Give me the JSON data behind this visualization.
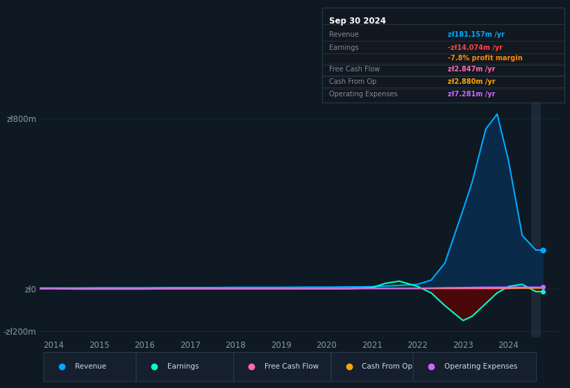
{
  "bg_color": "#0f1923",
  "plot_bg_color": "#0f1923",
  "grid_color": "#1e2d3d",
  "title_box": {
    "date": "Sep 30 2024",
    "rows": [
      {
        "label": "Revenue",
        "value": "zł181.157m /yr",
        "val_color": "#00aaff",
        "label_color": "#888899"
      },
      {
        "label": "Earnings",
        "value": "-zł14.074m /yr",
        "val_color": "#ff4444",
        "label_color": "#888899"
      },
      {
        "label": "",
        "value": "-7.8% profit margin",
        "val_color": "#ff8800",
        "label_color": "#888899"
      },
      {
        "label": "Free Cash Flow",
        "value": "zł2.847m /yr",
        "val_color": "#ff69b4",
        "label_color": "#888899"
      },
      {
        "label": "Cash From Op",
        "value": "zł2.880m /yr",
        "val_color": "#ffa500",
        "label_color": "#888899"
      },
      {
        "label": "Operating Expenses",
        "value": "zł7.281m /yr",
        "val_color": "#cc66ff",
        "label_color": "#888899"
      }
    ]
  },
  "revenue_color": "#00aaff",
  "earnings_color": "#00ffcc",
  "fcf_color": "#ff69b4",
  "cashfromop_color": "#ffa500",
  "opex_color": "#cc66ff",
  "revenue_fill_color": "#0a2a4a",
  "earnings_fill_pos_color": "#003322",
  "earnings_fill_neg_color": "#4a0808",
  "years": [
    2013.7,
    2014.0,
    2014.5,
    2015.0,
    2015.5,
    2016.0,
    2016.5,
    2017.0,
    2017.5,
    2018.0,
    2018.5,
    2019.0,
    2019.5,
    2020.0,
    2020.5,
    2021.0,
    2021.3,
    2021.6,
    2022.0,
    2022.3,
    2022.6,
    2023.0,
    2023.2,
    2023.5,
    2023.75,
    2024.0,
    2024.3,
    2024.6,
    2024.75
  ],
  "revenue": [
    3,
    3,
    3,
    4,
    4,
    4,
    5,
    5,
    5,
    6,
    6,
    6,
    7,
    7,
    8,
    9,
    12,
    15,
    20,
    40,
    120,
    370,
    500,
    750,
    820,
    600,
    250,
    181,
    181
  ],
  "earnings": [
    0,
    0,
    -2,
    -2,
    -2,
    -2,
    -1,
    -1,
    -1,
    -1,
    -1,
    -1,
    -1,
    -1,
    -1,
    5,
    25,
    35,
    10,
    -20,
    -80,
    -150,
    -130,
    -70,
    -20,
    10,
    20,
    -14,
    -14
  ],
  "fcf": [
    0,
    0,
    0,
    0,
    0,
    0,
    0,
    0,
    0,
    0,
    0,
    0,
    0,
    0,
    0,
    0,
    0,
    0,
    0,
    0,
    0,
    0,
    0,
    0,
    0,
    0,
    2,
    2.847,
    2.847
  ],
  "cashfromop": [
    0,
    0.5,
    0.5,
    0.5,
    0.5,
    0.5,
    0.5,
    0.5,
    0.5,
    0.5,
    0.5,
    0.5,
    0.5,
    0.5,
    0.5,
    1,
    1,
    1,
    1,
    2,
    3,
    4,
    5,
    5,
    5,
    4,
    3,
    2.88,
    2.88
  ],
  "opex": [
    0.5,
    0.5,
    0.5,
    0.5,
    0.5,
    0.5,
    0.5,
    0.5,
    0.5,
    0.5,
    0.5,
    0.5,
    0.5,
    0.5,
    0.5,
    1,
    1,
    1,
    2,
    3,
    4,
    5,
    6,
    7,
    7,
    7,
    7,
    7.281,
    7.281
  ],
  "ylim": [
    -230,
    900
  ],
  "xlim": [
    2013.7,
    2025.1
  ],
  "yticks": [
    -200,
    0,
    800
  ],
  "ytick_labels": [
    "-zł200m",
    "zł0",
    "zł800m"
  ],
  "xticks": [
    2014,
    2015,
    2016,
    2017,
    2018,
    2019,
    2020,
    2021,
    2022,
    2023,
    2024
  ],
  "legend_items": [
    {
      "label": "Revenue",
      "color": "#00aaff"
    },
    {
      "label": "Earnings",
      "color": "#00ffcc"
    },
    {
      "label": "Free Cash Flow",
      "color": "#ff69b4"
    },
    {
      "label": "Cash From Op",
      "color": "#ffa500"
    },
    {
      "label": "Operating Expenses",
      "color": "#cc66ff"
    }
  ]
}
